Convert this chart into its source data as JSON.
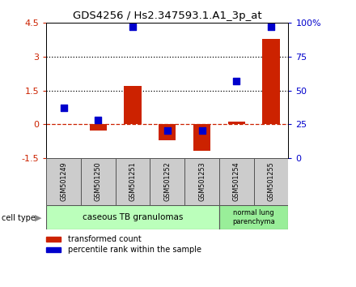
{
  "title": "GDS4256 / Hs2.347593.1.A1_3p_at",
  "samples": [
    "GSM501249",
    "GSM501250",
    "GSM501251",
    "GSM501252",
    "GSM501253",
    "GSM501254",
    "GSM501255"
  ],
  "transformed_counts": [
    0.02,
    -0.3,
    1.7,
    -0.7,
    -1.2,
    0.12,
    3.8
  ],
  "percentile_ranks": [
    37,
    28,
    97,
    20,
    20,
    57,
    97
  ],
  "ylim_left": [
    -1.5,
    4.5
  ],
  "ylim_right": [
    0,
    100
  ],
  "yticks_left": [
    -1.5,
    0,
    1.5,
    3,
    4.5
  ],
  "yticks_right": [
    0,
    25,
    50,
    75,
    100
  ],
  "ytick_labels_right": [
    "0",
    "25",
    "50",
    "75",
    "100%"
  ],
  "hlines": [
    1.5,
    3.0
  ],
  "bar_color": "#cc2200",
  "dot_color": "#0000cc",
  "bar_width": 0.5,
  "dot_size": 35,
  "group1_label": "caseous TB granulomas",
  "group2_label": "normal lung\nparenchyma",
  "group1_color": "#bbffbb",
  "group2_color": "#99ee99",
  "cell_type_label": "cell type",
  "legend_red_label": "transformed count",
  "legend_blue_label": "percentile rank within the sample",
  "sample_box_color": "#cccccc",
  "left_tick_color": "#cc2200",
  "right_tick_color": "#0000cc"
}
